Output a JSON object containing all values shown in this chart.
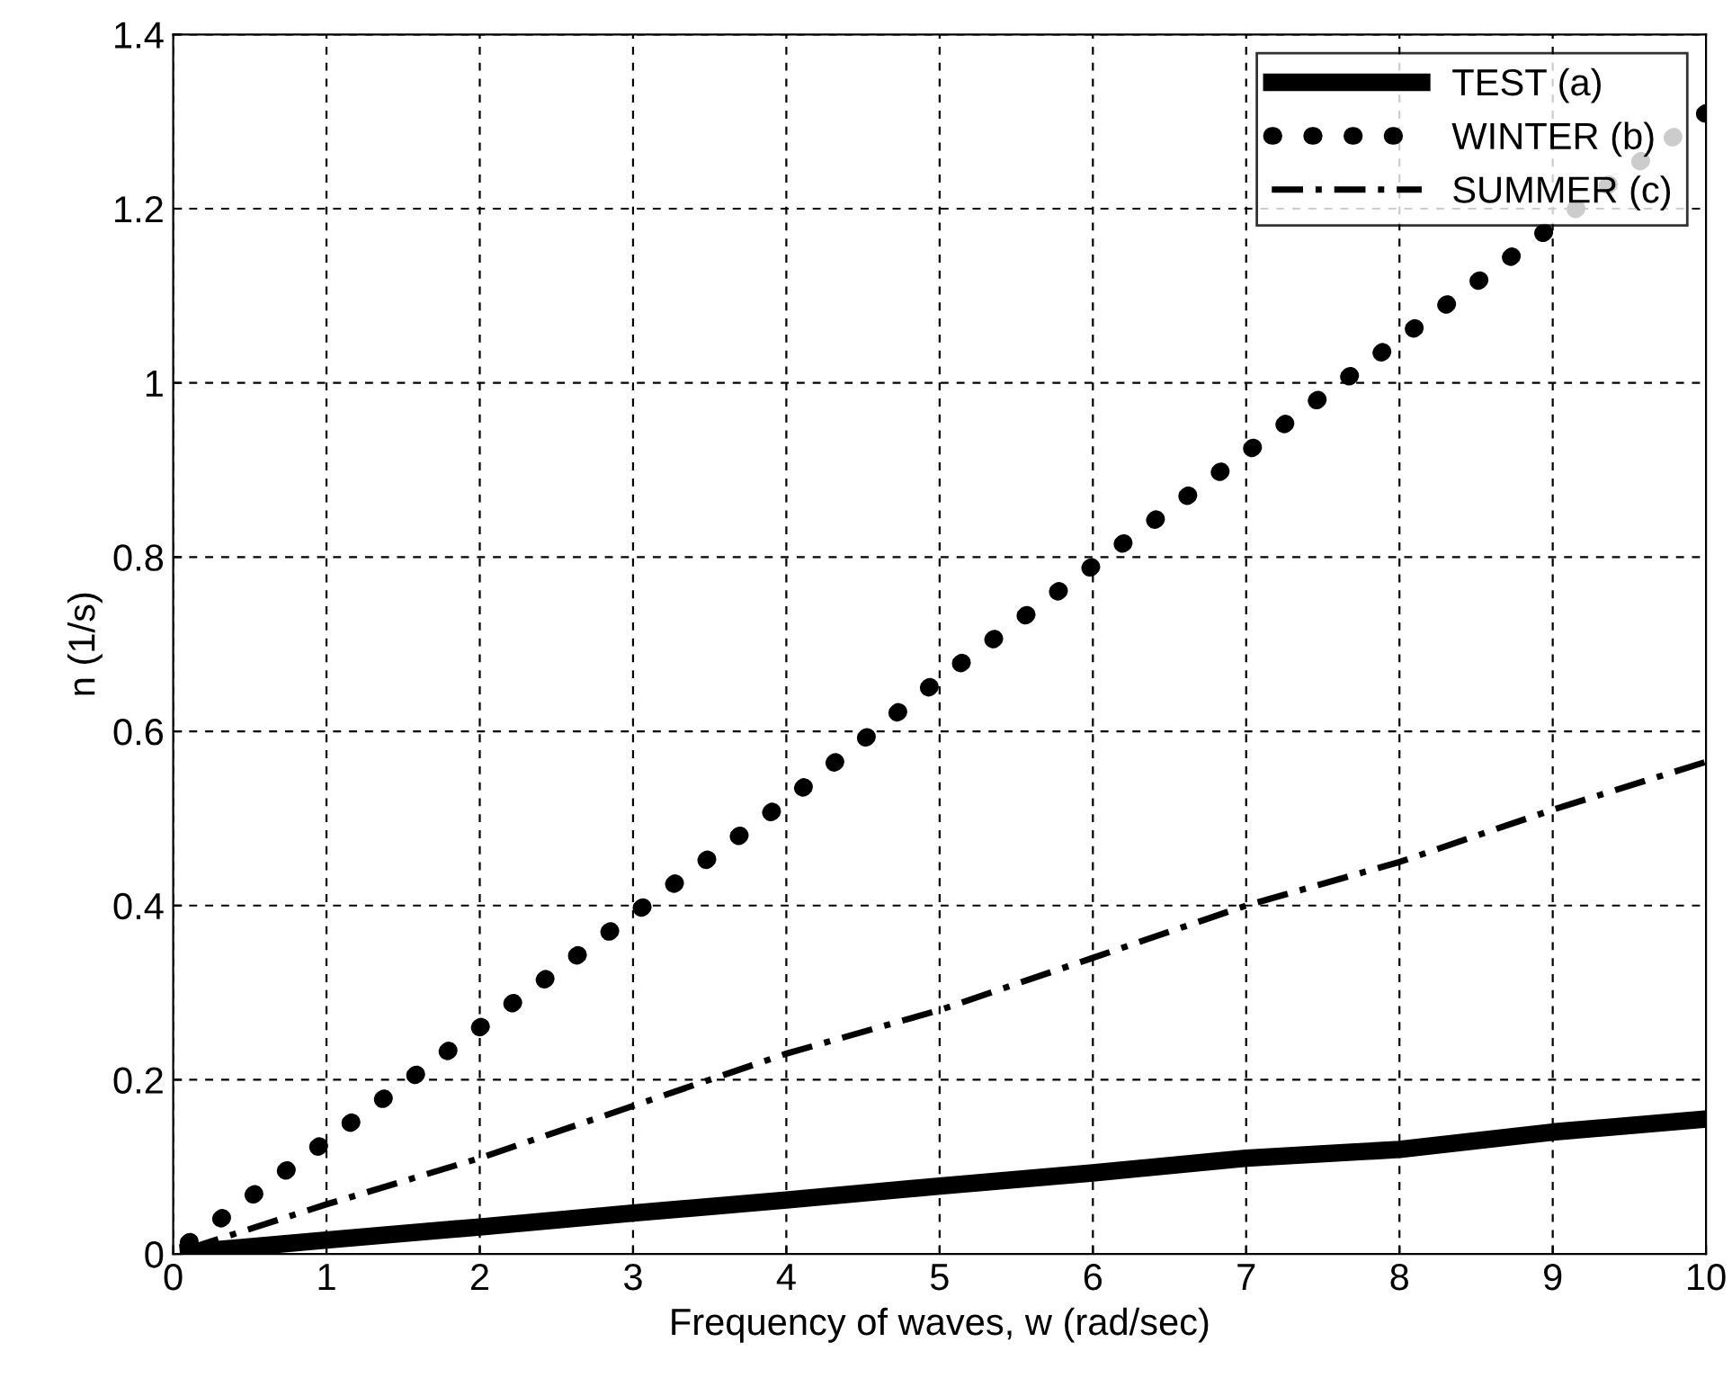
{
  "chart_data": {
    "type": "line",
    "xlabel": "Frequency of waves, w (rad/sec)",
    "ylabel": "n (1/s)",
    "x": [
      0.1,
      1,
      2,
      3,
      4,
      5,
      6,
      7,
      8,
      9,
      10
    ],
    "series": [
      {
        "name": "TEST (a)",
        "color": "#000000",
        "line_style": "solid",
        "values": [
          0.002,
          0.016,
          0.031,
          0.047,
          0.062,
          0.078,
          0.093,
          0.11,
          0.12,
          0.14,
          0.155
        ]
      },
      {
        "name": "WINTER (b)",
        "color": "#000000",
        "line_style": "dotted",
        "values": [
          0.013,
          0.13,
          0.26,
          0.39,
          0.52,
          0.66,
          0.79,
          0.92,
          1.05,
          1.18,
          1.31
        ]
      },
      {
        "name": "SUMMER (c)",
        "color": "#000000",
        "line_style": "dashdot",
        "values": [
          0.006,
          0.057,
          0.11,
          0.17,
          0.23,
          0.28,
          0.34,
          0.4,
          0.45,
          0.51,
          0.565
        ]
      }
    ],
    "xlim": [
      0,
      10
    ],
    "xticks": [
      0,
      1,
      2,
      3,
      4,
      5,
      6,
      7,
      8,
      9,
      10
    ],
    "ylim": [
      0,
      1.4
    ],
    "yticks": [
      0,
      0.2,
      0.4,
      0.6,
      0.8,
      1,
      1.2,
      1.4
    ],
    "grid": true,
    "legend": "top right",
    "marker": "none"
  }
}
